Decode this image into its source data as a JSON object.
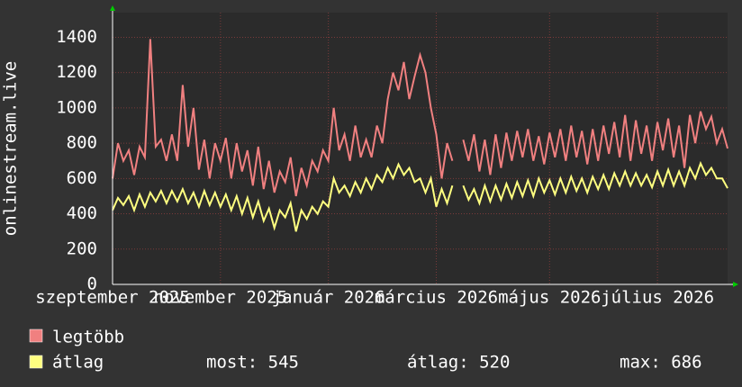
{
  "chart_data": {
    "type": "line",
    "y_label": "onlinestream.live",
    "categories": [
      "szeptember 2025",
      null,
      null,
      null,
      null,
      null,
      null,
      null,
      null,
      null,
      null,
      null,
      null,
      null,
      null,
      null,
      null,
      null,
      null,
      null,
      "november 2025",
      null,
      null,
      null,
      null,
      null,
      null,
      null,
      null,
      null,
      null,
      null,
      null,
      null,
      null,
      null,
      null,
      null,
      null,
      null,
      "január 2026",
      null,
      null,
      null,
      null,
      null,
      null,
      null,
      null,
      null,
      null,
      null,
      null,
      null,
      null,
      null,
      null,
      null,
      null,
      null,
      "március 2026",
      null,
      null,
      null,
      null,
      null,
      null,
      null,
      null,
      null,
      null,
      null,
      null,
      null,
      null,
      null,
      null,
      null,
      null,
      null,
      null,
      "május 2026",
      null,
      null,
      null,
      null,
      null,
      null,
      null,
      null,
      null,
      null,
      null,
      null,
      null,
      null,
      null,
      null,
      null,
      null,
      null,
      "július 2026",
      null,
      null,
      null,
      null,
      null,
      null,
      null,
      null,
      null,
      null,
      null,
      null,
      null
    ],
    "series": [
      {
        "name": "legtöbb",
        "color": "#f08080",
        "values": [
          600,
          800,
          700,
          760,
          620,
          780,
          720,
          1390,
          780,
          820,
          700,
          850,
          700,
          1130,
          780,
          1000,
          650,
          820,
          600,
          800,
          700,
          830,
          600,
          800,
          640,
          760,
          560,
          780,
          540,
          700,
          520,
          640,
          580,
          720,
          500,
          660,
          560,
          700,
          640,
          760,
          700,
          1000,
          760,
          850,
          700,
          900,
          720,
          820,
          720,
          900,
          800,
          1050,
          1200,
          1100,
          1260,
          1050,
          1180,
          1300,
          1200,
          1000,
          850,
          600,
          800,
          700,
          null,
          820,
          700,
          850,
          640,
          820,
          620,
          850,
          660,
          860,
          700,
          870,
          720,
          880,
          700,
          840,
          680,
          860,
          720,
          880,
          700,
          900,
          720,
          870,
          680,
          880,
          700,
          900,
          740,
          920,
          720,
          960,
          700,
          930,
          740,
          900,
          700,
          920,
          760,
          940,
          720,
          900,
          660,
          960,
          800,
          980,
          880,
          950,
          800,
          880,
          770
        ]
      },
      {
        "name": "átlag",
        "color": "#ffff80",
        "values": [
          420,
          490,
          450,
          500,
          420,
          510,
          440,
          520,
          470,
          530,
          460,
          530,
          470,
          540,
          460,
          520,
          440,
          530,
          450,
          520,
          440,
          510,
          420,
          500,
          400,
          490,
          380,
          470,
          360,
          430,
          320,
          420,
          380,
          460,
          300,
          420,
          370,
          440,
          400,
          470,
          440,
          600,
          520,
          560,
          500,
          580,
          520,
          600,
          540,
          620,
          580,
          660,
          600,
          680,
          620,
          660,
          580,
          600,
          520,
          600,
          440,
          540,
          460,
          560,
          null,
          560,
          480,
          540,
          460,
          560,
          470,
          560,
          480,
          570,
          490,
          580,
          500,
          590,
          500,
          600,
          520,
          590,
          510,
          600,
          520,
          610,
          530,
          600,
          520,
          610,
          540,
          620,
          540,
          630,
          560,
          640,
          560,
          630,
          560,
          620,
          550,
          640,
          560,
          650,
          560,
          640,
          560,
          660,
          600,
          686,
          620,
          660,
          600,
          600,
          545
        ]
      }
    ],
    "stats": [
      "most: 545",
      "átlag: 520",
      "max: 686"
    ],
    "ylim": [
      0,
      1540
    ],
    "yticks": [
      0,
      200,
      400,
      600,
      800,
      1000,
      1200,
      1400
    ],
    "grid": true
  }
}
